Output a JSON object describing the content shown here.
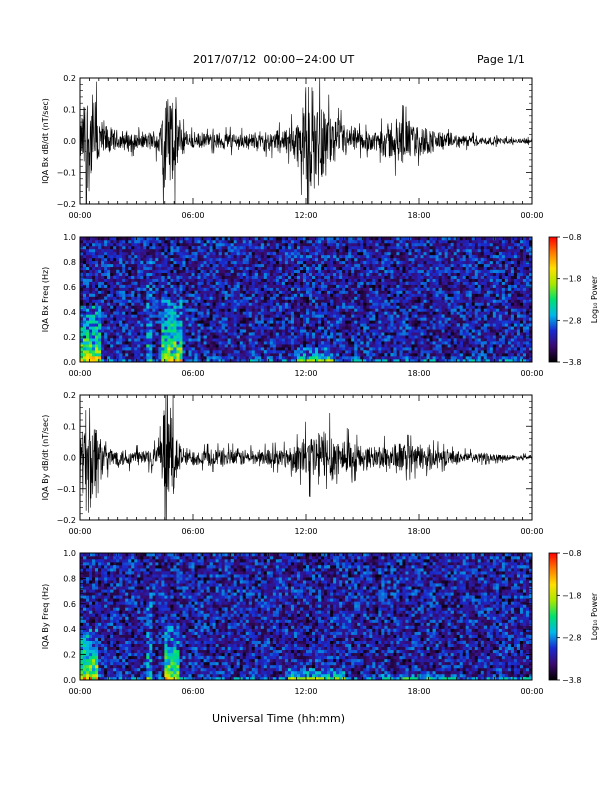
{
  "header": {
    "title": "2017/07/12  00:00−24:00 UT",
    "page": "Page 1/1"
  },
  "footer": {
    "xlabel": "Universal Time (hh:mm)"
  },
  "colors": {
    "trace": "#000000",
    "spectrogram_background": "#2a0a4a",
    "colormap": [
      "#000000",
      "#3a0a6e",
      "#1a2ad0",
      "#00b8e8",
      "#00e070",
      "#a8e800",
      "#ffe000",
      "#ff7a00",
      "#ff0000"
    ]
  },
  "chart_data": [
    {
      "type": "line",
      "panel": "bx-timeseries",
      "ylabel": "IQA Bx dB/dt (nT/sec)",
      "xlim": [
        0,
        24
      ],
      "ylim": [
        -0.2,
        0.2
      ],
      "xticks": [
        "00:00",
        "06:00",
        "12:00",
        "18:00",
        "00:00"
      ],
      "yticks": [
        "−0.2",
        "−0.1",
        "0.0",
        "0.1",
        "0.2"
      ],
      "envelope": {
        "hours": [
          0,
          0.3,
          0.6,
          0.9,
          1.2,
          1.6,
          2,
          2.5,
          3,
          3.5,
          3.9,
          4.2,
          4.5,
          4.8,
          5.1,
          5.4,
          5.8,
          6.2,
          7,
          8,
          9,
          10,
          11,
          11.6,
          12,
          12.3,
          12.6,
          13,
          13.5,
          14,
          14.5,
          15,
          15.5,
          16,
          16.5,
          17,
          17.5,
          18,
          18.5,
          19,
          19.5,
          20,
          21,
          22,
          23,
          24
        ],
        "amplitude": [
          0.06,
          0.2,
          0.2,
          0.14,
          0.08,
          0.05,
          0.04,
          0.04,
          0.035,
          0.03,
          0.04,
          0.06,
          0.2,
          0.2,
          0.15,
          0.06,
          0.035,
          0.03,
          0.03,
          0.035,
          0.03,
          0.04,
          0.05,
          0.09,
          0.2,
          0.2,
          0.17,
          0.13,
          0.09,
          0.07,
          0.05,
          0.04,
          0.04,
          0.055,
          0.08,
          0.09,
          0.08,
          0.06,
          0.05,
          0.04,
          0.03,
          0.025,
          0.02,
          0.015,
          0.01,
          0.01
        ]
      }
    },
    {
      "type": "heatmap",
      "panel": "bx-spectrogram",
      "ylabel": "IQA Bx Freq (Hz)",
      "xlim": [
        0,
        24
      ],
      "ylim": [
        0,
        1
      ],
      "xticks": [
        "00:00",
        "06:00",
        "12:00",
        "18:00",
        "00:00"
      ],
      "yticks": [
        "0.0",
        "0.2",
        "0.4",
        "0.6",
        "0.8",
        "1.0"
      ],
      "colorbar": {
        "label": "Log₁₀ Power",
        "range": [
          -3.8,
          -0.8
        ],
        "ticks": [
          "−0.8",
          "−1.8",
          "−2.8",
          "−3.8"
        ]
      },
      "enhancements": [
        {
          "hours": [
            0,
            1.2
          ],
          "max_freq": 0.45,
          "strength": 1.0
        },
        {
          "hours": [
            3.5,
            3.8
          ],
          "max_freq": 0.8,
          "strength": 0.5
        },
        {
          "hours": [
            4.3,
            5.4
          ],
          "max_freq": 0.5,
          "strength": 0.9
        },
        {
          "hours": [
            11.5,
            13.5
          ],
          "max_freq": 0.12,
          "strength": 0.6
        }
      ]
    },
    {
      "type": "line",
      "panel": "by-timeseries",
      "ylabel": "IQA By dB/dt (nT/sec)",
      "xlim": [
        0,
        24
      ],
      "ylim": [
        -0.2,
        0.2
      ],
      "xticks": [
        "00:00",
        "06:00",
        "12:00",
        "18:00",
        "00:00"
      ],
      "yticks": [
        "−0.2",
        "−0.1",
        "0.0",
        "0.1",
        "0.2"
      ],
      "envelope": {
        "hours": [
          0,
          0.3,
          0.6,
          0.9,
          1.2,
          1.6,
          2,
          2.5,
          3,
          3.5,
          3.9,
          4.2,
          4.5,
          4.8,
          5.1,
          5.4,
          5.8,
          6.2,
          7,
          8,
          9,
          10,
          11,
          11.6,
          12,
          12.3,
          12.6,
          13,
          13.5,
          14,
          14.5,
          15,
          15.5,
          16,
          16.5,
          17,
          17.5,
          18,
          18.5,
          19,
          19.5,
          20,
          21,
          22,
          23,
          24
        ],
        "amplitude": [
          0.08,
          0.2,
          0.2,
          0.15,
          0.07,
          0.04,
          0.035,
          0.035,
          0.03,
          0.035,
          0.04,
          0.05,
          0.2,
          0.2,
          0.12,
          0.04,
          0.035,
          0.03,
          0.035,
          0.035,
          0.03,
          0.035,
          0.04,
          0.06,
          0.09,
          0.1,
          0.11,
          0.12,
          0.1,
          0.08,
          0.06,
          0.05,
          0.04,
          0.05,
          0.06,
          0.06,
          0.055,
          0.05,
          0.045,
          0.04,
          0.03,
          0.025,
          0.02,
          0.015,
          0.01,
          0.01
        ]
      }
    },
    {
      "type": "heatmap",
      "panel": "by-spectrogram",
      "ylabel": "IQA By Freq (Hz)",
      "xlim": [
        0,
        24
      ],
      "ylim": [
        0,
        1
      ],
      "xticks": [
        "00:00",
        "06:00",
        "12:00",
        "18:00",
        "00:00"
      ],
      "yticks": [
        "0.0",
        "0.2",
        "0.4",
        "0.6",
        "0.8",
        "1.0"
      ],
      "colorbar": {
        "label": "Log₁₀ Power",
        "range": [
          -3.8,
          -0.8
        ],
        "ticks": [
          "−0.8",
          "−1.8",
          "−2.8",
          "−3.8"
        ]
      },
      "enhancements": [
        {
          "hours": [
            0,
            1.0
          ],
          "max_freq": 0.4,
          "strength": 1.0
        },
        {
          "hours": [
            3.5,
            3.8
          ],
          "max_freq": 0.7,
          "strength": 0.5
        },
        {
          "hours": [
            4.4,
            5.3
          ],
          "max_freq": 0.45,
          "strength": 0.9
        },
        {
          "hours": [
            11.0,
            14.0
          ],
          "max_freq": 0.1,
          "strength": 0.6
        },
        {
          "hours": [
            16.0,
            20.0
          ],
          "max_freq": 0.05,
          "strength": 0.5
        }
      ]
    }
  ]
}
